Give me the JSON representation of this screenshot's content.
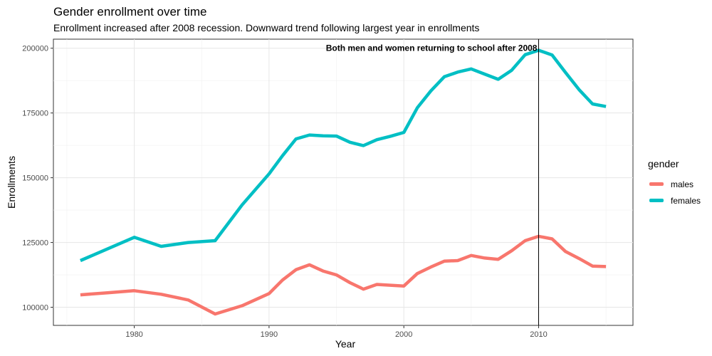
{
  "chart_data": {
    "type": "line",
    "title": "Gender enrollment over time",
    "subtitle": "Enrollment increased after 2008 recession. Downward trend following largest year in enrollments",
    "xlabel": "Year",
    "ylabel": "Enrollments",
    "xlim": [
      1974,
      2017
    ],
    "ylim": [
      93000,
      203500
    ],
    "xticks": [
      1980,
      1990,
      2000,
      2010
    ],
    "yticks": [
      100000,
      125000,
      150000,
      175000,
      200000
    ],
    "ytick_labels": [
      "100000",
      "125000",
      "150000",
      "175000",
      "200000"
    ],
    "grid": true,
    "legend": {
      "title": "gender",
      "position": "right"
    },
    "x": [
      1976,
      1978,
      1980,
      1982,
      1984,
      1986,
      1988,
      1990,
      1991,
      1992,
      1993,
      1994,
      1995,
      1996,
      1997,
      1998,
      1999,
      2000,
      2001,
      2002,
      2003,
      2004,
      2005,
      2006,
      2007,
      2008,
      2009,
      2010,
      2011,
      2012,
      2013,
      2014,
      2015
    ],
    "series": [
      {
        "name": "males",
        "color": "#F8766D",
        "values": [
          104800,
          105600,
          106400,
          105000,
          102800,
          97400,
          100600,
          105300,
          110500,
          114500,
          116400,
          114000,
          112500,
          109500,
          107000,
          108800,
          108500,
          108200,
          113000,
          115500,
          117800,
          118000,
          120000,
          119000,
          118500,
          121800,
          125700,
          127400,
          126400,
          121500,
          118800,
          115900,
          115700
        ]
      },
      {
        "name": "females",
        "color": "#00BFC4",
        "values": [
          118000,
          122500,
          127000,
          123500,
          125000,
          125700,
          139500,
          151500,
          158500,
          165000,
          166500,
          166200,
          166100,
          163700,
          162400,
          164700,
          166000,
          167500,
          177000,
          183500,
          189000,
          190800,
          192000,
          190000,
          188000,
          191500,
          197500,
          199200,
          197400,
          190600,
          184000,
          178500,
          177500
        ]
      }
    ],
    "annotations": [
      {
        "text": "Both men and women returning to school after 2008",
        "x": 2010,
        "y": 200000,
        "vline_x": 2010
      }
    ]
  }
}
